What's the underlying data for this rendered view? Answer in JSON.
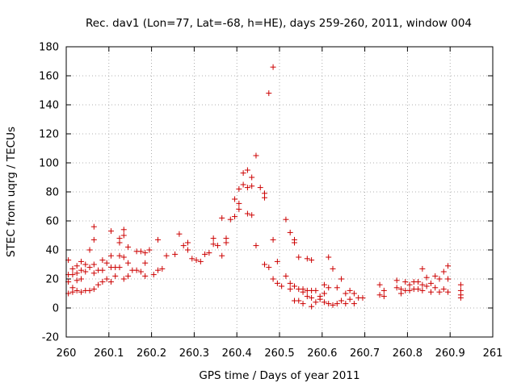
{
  "chart_data": {
    "type": "scatter",
    "title": "Rec. dav1 (Lon=77, Lat=-68, h=HE), days 259-260, 2011, window 004",
    "xlabel": "GPS time / Days of year 2011",
    "ylabel": "STEC from uqrg / TECUs",
    "xlim": [
      260,
      261
    ],
    "ylim": [
      -20,
      180
    ],
    "x_ticks": [
      {
        "value": 260,
        "label": "260"
      },
      {
        "value": 260.1,
        "label": "260.1"
      },
      {
        "value": 260.2,
        "label": "260.2"
      },
      {
        "value": 260.3,
        "label": "260.3"
      },
      {
        "value": 260.4,
        "label": "260.4"
      },
      {
        "value": 260.5,
        "label": "260.5"
      },
      {
        "value": 260.6,
        "label": "260.6"
      },
      {
        "value": 260.7,
        "label": "260.7"
      },
      {
        "value": 260.8,
        "label": "260.8"
      },
      {
        "value": 260.9,
        "label": "260.9"
      },
      {
        "value": 261,
        "label": "261"
      }
    ],
    "y_ticks": [
      {
        "value": -20,
        "label": "-20"
      },
      {
        "value": 0,
        "label": "0"
      },
      {
        "value": 20,
        "label": "20"
      },
      {
        "value": 40,
        "label": "40"
      },
      {
        "value": 60,
        "label": "60"
      },
      {
        "value": 80,
        "label": "80"
      },
      {
        "value": 100,
        "label": "100"
      },
      {
        "value": 120,
        "label": "120"
      },
      {
        "value": 140,
        "label": "140"
      },
      {
        "value": 160,
        "label": "160"
      },
      {
        "value": 180,
        "label": "180"
      }
    ],
    "grid": true,
    "grid_style": "dotted",
    "marker": "+",
    "color": "#cc0000",
    "points": [
      [
        260.005,
        33
      ],
      [
        260.005,
        23
      ],
      [
        260.005,
        18
      ],
      [
        260.005,
        10
      ],
      [
        260.015,
        27
      ],
      [
        260.015,
        23
      ],
      [
        260.015,
        14
      ],
      [
        260.015,
        11
      ],
      [
        260.025,
        29
      ],
      [
        260.025,
        24
      ],
      [
        260.025,
        19
      ],
      [
        260.025,
        12
      ],
      [
        260.035,
        32
      ],
      [
        260.035,
        26
      ],
      [
        260.035,
        20
      ],
      [
        260.035,
        11
      ],
      [
        260.045,
        30
      ],
      [
        260.045,
        25
      ],
      [
        260.045,
        12
      ],
      [
        260.055,
        40
      ],
      [
        260.055,
        28
      ],
      [
        260.055,
        12
      ],
      [
        260.065,
        56
      ],
      [
        260.065,
        47
      ],
      [
        260.065,
        30
      ],
      [
        260.065,
        24
      ],
      [
        260.065,
        13
      ],
      [
        260.075,
        26
      ],
      [
        260.075,
        16
      ],
      [
        260.085,
        33
      ],
      [
        260.085,
        26
      ],
      [
        260.085,
        18
      ],
      [
        260.095,
        31
      ],
      [
        260.095,
        20
      ],
      [
        260.105,
        53
      ],
      [
        260.105,
        36
      ],
      [
        260.105,
        28
      ],
      [
        260.105,
        18
      ],
      [
        260.115,
        28
      ],
      [
        260.115,
        22
      ],
      [
        260.125,
        48
      ],
      [
        260.125,
        45
      ],
      [
        260.125,
        36
      ],
      [
        260.125,
        28
      ],
      [
        260.135,
        54
      ],
      [
        260.135,
        50
      ],
      [
        260.135,
        35
      ],
      [
        260.135,
        20
      ],
      [
        260.145,
        42
      ],
      [
        260.145,
        31
      ],
      [
        260.145,
        22
      ],
      [
        260.155,
        26
      ],
      [
        260.165,
        39
      ],
      [
        260.165,
        26
      ],
      [
        260.175,
        39
      ],
      [
        260.175,
        25
      ],
      [
        260.185,
        38
      ],
      [
        260.185,
        31
      ],
      [
        260.185,
        22
      ],
      [
        260.195,
        40
      ],
      [
        260.205,
        23
      ],
      [
        260.215,
        47
      ],
      [
        260.215,
        26
      ],
      [
        260.225,
        27
      ],
      [
        260.235,
        36
      ],
      [
        260.255,
        37
      ],
      [
        260.265,
        51
      ],
      [
        260.275,
        43
      ],
      [
        260.285,
        45
      ],
      [
        260.285,
        40
      ],
      [
        260.295,
        34
      ],
      [
        260.305,
        33
      ],
      [
        260.315,
        32
      ],
      [
        260.325,
        37
      ],
      [
        260.335,
        38
      ],
      [
        260.345,
        48
      ],
      [
        260.345,
        44
      ],
      [
        260.355,
        43
      ],
      [
        260.365,
        62
      ],
      [
        260.365,
        36
      ],
      [
        260.375,
        48
      ],
      [
        260.375,
        45
      ],
      [
        260.385,
        61
      ],
      [
        260.395,
        75
      ],
      [
        260.395,
        63
      ],
      [
        260.405,
        82
      ],
      [
        260.405,
        72
      ],
      [
        260.405,
        68
      ],
      [
        260.415,
        85
      ],
      [
        260.415,
        93
      ],
      [
        260.425,
        95
      ],
      [
        260.425,
        83
      ],
      [
        260.425,
        65
      ],
      [
        260.435,
        90
      ],
      [
        260.435,
        84
      ],
      [
        260.435,
        64
      ],
      [
        260.445,
        105
      ],
      [
        260.445,
        43
      ],
      [
        260.455,
        83
      ],
      [
        260.465,
        79
      ],
      [
        260.465,
        76
      ],
      [
        260.465,
        30
      ],
      [
        260.475,
        148
      ],
      [
        260.475,
        28
      ],
      [
        260.485,
        166
      ],
      [
        260.485,
        47
      ],
      [
        260.485,
        20
      ],
      [
        260.495,
        32
      ],
      [
        260.495,
        17
      ],
      [
        260.505,
        15
      ],
      [
        260.515,
        61
      ],
      [
        260.515,
        22
      ],
      [
        260.525,
        52
      ],
      [
        260.525,
        17
      ],
      [
        260.525,
        13
      ],
      [
        260.535,
        47
      ],
      [
        260.535,
        45
      ],
      [
        260.535,
        15
      ],
      [
        260.535,
        5
      ],
      [
        260.545,
        35
      ],
      [
        260.545,
        13
      ],
      [
        260.545,
        5
      ],
      [
        260.555,
        13
      ],
      [
        260.555,
        11
      ],
      [
        260.555,
        3
      ],
      [
        260.565,
        34
      ],
      [
        260.565,
        12
      ],
      [
        260.565,
        8
      ],
      [
        260.575,
        33
      ],
      [
        260.575,
        12
      ],
      [
        260.575,
        7
      ],
      [
        260.575,
        1
      ],
      [
        260.585,
        12
      ],
      [
        260.585,
        4
      ],
      [
        260.595,
        8
      ],
      [
        260.595,
        6
      ],
      [
        260.605,
        16
      ],
      [
        260.605,
        10
      ],
      [
        260.605,
        4
      ],
      [
        260.615,
        35
      ],
      [
        260.615,
        14
      ],
      [
        260.615,
        3
      ],
      [
        260.625,
        27
      ],
      [
        260.625,
        2
      ],
      [
        260.635,
        14
      ],
      [
        260.635,
        3
      ],
      [
        260.645,
        20
      ],
      [
        260.645,
        5
      ],
      [
        260.655,
        10
      ],
      [
        260.655,
        3
      ],
      [
        260.665,
        12
      ],
      [
        260.665,
        6
      ],
      [
        260.675,
        10
      ],
      [
        260.675,
        3
      ],
      [
        260.685,
        7
      ],
      [
        260.695,
        7
      ],
      [
        260.735,
        16
      ],
      [
        260.735,
        9
      ],
      [
        260.745,
        12
      ],
      [
        260.745,
        8
      ],
      [
        260.775,
        19
      ],
      [
        260.775,
        14
      ],
      [
        260.785,
        13
      ],
      [
        260.785,
        10
      ],
      [
        260.795,
        18
      ],
      [
        260.795,
        12
      ],
      [
        260.805,
        16
      ],
      [
        260.805,
        12
      ],
      [
        260.815,
        18
      ],
      [
        260.815,
        13
      ],
      [
        260.825,
        18
      ],
      [
        260.825,
        13
      ],
      [
        260.835,
        27
      ],
      [
        260.835,
        16
      ],
      [
        260.835,
        12
      ],
      [
        260.845,
        21
      ],
      [
        260.845,
        15
      ],
      [
        260.855,
        17
      ],
      [
        260.855,
        11
      ],
      [
        260.865,
        22
      ],
      [
        260.865,
        14
      ],
      [
        260.875,
        20
      ],
      [
        260.875,
        11
      ],
      [
        260.885,
        25
      ],
      [
        260.885,
        13
      ],
      [
        260.895,
        29
      ],
      [
        260.895,
        20
      ],
      [
        260.895,
        11
      ],
      [
        260.925,
        16
      ],
      [
        260.925,
        12
      ],
      [
        260.925,
        9
      ],
      [
        260.925,
        7
      ]
    ]
  }
}
